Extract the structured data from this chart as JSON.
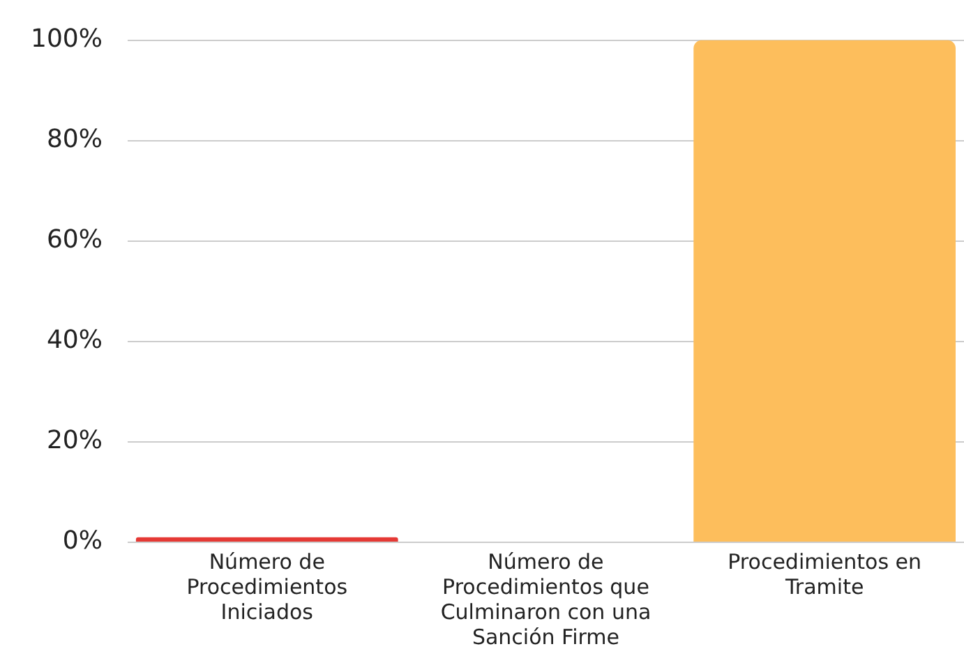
{
  "chart_data": {
    "type": "bar",
    "categories": [
      "Número de Procedimientos Iniciados",
      "Número de Procedimientos que Culminaron con una Sanción Firme",
      "Procedimientos en Tramite"
    ],
    "values": [
      1,
      0,
      100
    ],
    "colors": [
      "#e53935",
      "#e53935",
      "#fdbe5c"
    ],
    "ylim": [
      0,
      100
    ],
    "yticks": [
      {
        "value": 0,
        "label": "0%"
      },
      {
        "value": 20,
        "label": "20%"
      },
      {
        "value": 40,
        "label": "40%"
      },
      {
        "value": 60,
        "label": "60%"
      },
      {
        "value": 80,
        "label": "80%"
      },
      {
        "value": 100,
        "label": "100%"
      }
    ],
    "grid": "y"
  }
}
